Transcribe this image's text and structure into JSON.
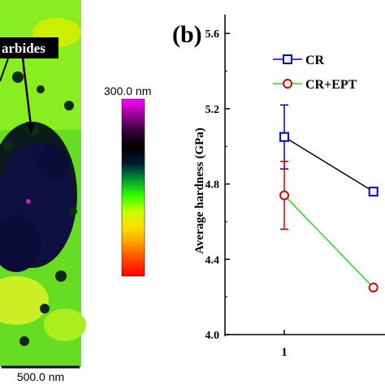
{
  "afm": {
    "label": "arbides",
    "scale_bar_text": "500.0 nm",
    "colorbar_max_label": "300.0 nm",
    "colorbar_colors": [
      "#ff0000",
      "#ff4400",
      "#ff9900",
      "#ffdd00",
      "#ccff00",
      "#33ff00",
      "#009933",
      "#001a33",
      "#000000",
      "#330033",
      "#990099",
      "#ff00ff"
    ]
  },
  "chart_data": {
    "type": "line",
    "panel_label": "(b)",
    "ylabel": "Average hardness (GPa)",
    "xlabel": "",
    "ylim": [
      4.0,
      5.7
    ],
    "yticks": [
      "4.0",
      "4.4",
      "4.8",
      "5.2",
      "5.6"
    ],
    "xticks": [
      "1"
    ],
    "series": [
      {
        "name": "CR",
        "color": "#0000cc",
        "marker": "square",
        "points": [
          {
            "x": 1,
            "y": 5.05,
            "err": 0.17
          },
          {
            "x": 1.53,
            "y": 4.76
          }
        ]
      },
      {
        "name": "CR+EPT",
        "color": "#22dd22",
        "error_color": "#dd0000",
        "marker": "circle",
        "points": [
          {
            "x": 1,
            "y": 4.74,
            "err": 0.18
          },
          {
            "x": 1.53,
            "y": 4.25
          }
        ]
      }
    ]
  }
}
